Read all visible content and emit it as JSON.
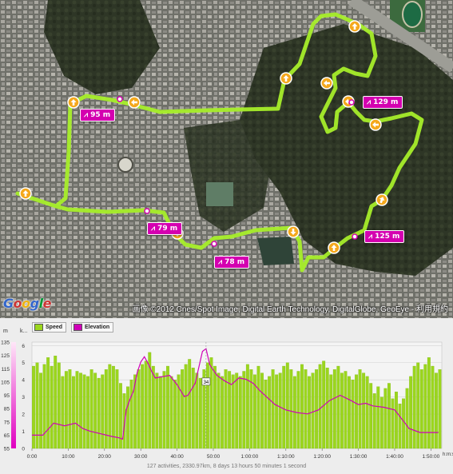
{
  "map": {
    "waypoint_labels": [
      {
        "id": "wp-95",
        "text": "95 m"
      },
      {
        "id": "wp-129",
        "text": "129 m"
      },
      {
        "id": "wp-79",
        "text": "79 m"
      },
      {
        "id": "wp-78",
        "text": "78 m"
      },
      {
        "id": "wp-125",
        "text": "125 m"
      }
    ],
    "elevation_icon": "elevation-icon",
    "logo_text": "Google",
    "attribution": "画像 ©2012 Cnes/Spot Image, Digital Earth Technology, DigitalGlobe, GeoEye - 利用規約",
    "route_color": "#a6ee2a",
    "label_color": "#d400b0",
    "arrow_color": "#f4a81c"
  },
  "chart": {
    "left_axis_unit": "m",
    "right_axis_unit": "k...",
    "x_axis_unit": "h:m:s",
    "marker_label": "34",
    "legend": [
      {
        "name": "Speed",
        "color": "#9bd61d"
      },
      {
        "name": "Elevation",
        "color": "#d000b8"
      }
    ]
  },
  "chart_data": {
    "type": "bar",
    "title": "",
    "xlabel": "h:m:s",
    "x_ticks": [
      "0:00",
      "10:00",
      "20:00",
      "30:00",
      "40:00",
      "50:00",
      "1:00:00",
      "1:10:00",
      "1:20:00",
      "1:30:00",
      "1:40:00",
      "1:50:00"
    ],
    "elevation_ticks": [
      "55",
      "65",
      "75",
      "85",
      "95",
      "105",
      "115",
      "125",
      "135"
    ],
    "speed_ticks": [
      "0",
      "1",
      "2",
      "3",
      "4",
      "5",
      "6"
    ],
    "elevation_range": [
      55,
      135
    ],
    "speed_range": [
      0,
      6.2
    ],
    "time_range_min": [
      0,
      113
    ],
    "series": [
      {
        "name": "Speed",
        "unit": "km/h",
        "time_min": [
          0,
          1,
          2,
          3,
          4,
          5,
          6,
          7,
          8,
          9,
          10,
          11,
          12,
          13,
          14,
          15,
          16,
          17,
          18,
          19,
          20,
          21,
          22,
          23,
          24,
          25,
          26,
          27,
          28,
          29,
          30,
          31,
          32,
          33,
          34,
          35,
          36,
          37,
          38,
          39,
          40,
          41,
          42,
          43,
          44,
          45,
          46,
          47,
          48,
          49,
          50,
          51,
          52,
          53,
          54,
          55,
          56,
          57,
          58,
          59,
          60,
          61,
          62,
          63,
          64,
          65,
          66,
          67,
          68,
          69,
          70,
          71,
          72,
          73,
          74,
          75,
          76,
          77,
          78,
          79,
          80,
          81,
          82,
          83,
          84,
          85,
          86,
          87,
          88,
          89,
          90,
          91,
          92,
          93,
          94,
          95,
          96,
          97,
          98,
          99,
          100,
          101,
          102,
          103,
          104,
          105,
          106,
          107,
          108,
          109,
          110,
          111,
          112
        ],
        "values": [
          4.8,
          5.0,
          4.4,
          4.9,
          5.3,
          4.8,
          5.4,
          5.0,
          4.2,
          4.5,
          4.6,
          4.2,
          4.5,
          4.4,
          4.3,
          4.2,
          4.6,
          4.4,
          4.1,
          4.3,
          4.6,
          4.9,
          4.8,
          4.6,
          3.8,
          3.2,
          3.6,
          4.0,
          4.3,
          4.6,
          4.9,
          5.1,
          5.6,
          4.8,
          4.4,
          4.2,
          4.5,
          4.8,
          4.2,
          4.0,
          4.3,
          4.6,
          4.9,
          5.2,
          4.7,
          4.4,
          4.1,
          4.6,
          5.0,
          5.3,
          4.8,
          4.4,
          4.2,
          4.6,
          4.5,
          4.3,
          4.4,
          4.2,
          4.5,
          4.9,
          4.6,
          4.3,
          4.8,
          4.4,
          4.0,
          4.2,
          4.6,
          4.3,
          4.4,
          4.8,
          5.0,
          4.6,
          4.2,
          4.5,
          4.9,
          4.6,
          4.2,
          4.4,
          4.6,
          4.9,
          5.1,
          4.7,
          4.3,
          4.6,
          4.8,
          4.4,
          4.5,
          4.2,
          4.0,
          4.3,
          4.6,
          4.4,
          4.2,
          3.8,
          3.2,
          3.6,
          3.0,
          3.5,
          3.8,
          2.9,
          3.3,
          2.6,
          2.9,
          3.5,
          4.2,
          4.8,
          5.0,
          4.6,
          4.9,
          5.3,
          4.8,
          4.4,
          4.6
        ]
      },
      {
        "name": "Elevation",
        "unit": "m",
        "time_min": [
          0,
          3,
          6,
          9,
          12,
          14,
          16,
          19,
          22,
          24,
          25,
          26,
          27,
          28,
          29,
          30,
          31,
          32,
          33,
          34,
          36,
          38,
          40,
          42,
          43,
          45,
          47,
          48,
          49,
          51,
          53,
          55,
          57,
          59,
          61,
          63,
          65,
          67,
          70,
          73,
          76,
          79,
          82,
          85,
          88,
          90,
          92,
          94,
          97,
          100,
          102,
          104,
          107,
          110,
          112
        ],
        "values": [
          65,
          65,
          74,
          72,
          74,
          70,
          68,
          66,
          64,
          63,
          62,
          84,
          92,
          98,
          112,
          120,
          124,
          119,
          113,
          108,
          109,
          110,
          103,
          94,
          95,
          104,
          128,
          130,
          118,
          110,
          106,
          103,
          108,
          107,
          104,
          98,
          93,
          88,
          84,
          82,
          81,
          84,
          91,
          95,
          91,
          88,
          89,
          87,
          86,
          84,
          77,
          70,
          67,
          67,
          67
        ]
      }
    ]
  },
  "status_line": "127 activities, 2330.97km, 8 days 13 hours 50 minutes 1 second"
}
